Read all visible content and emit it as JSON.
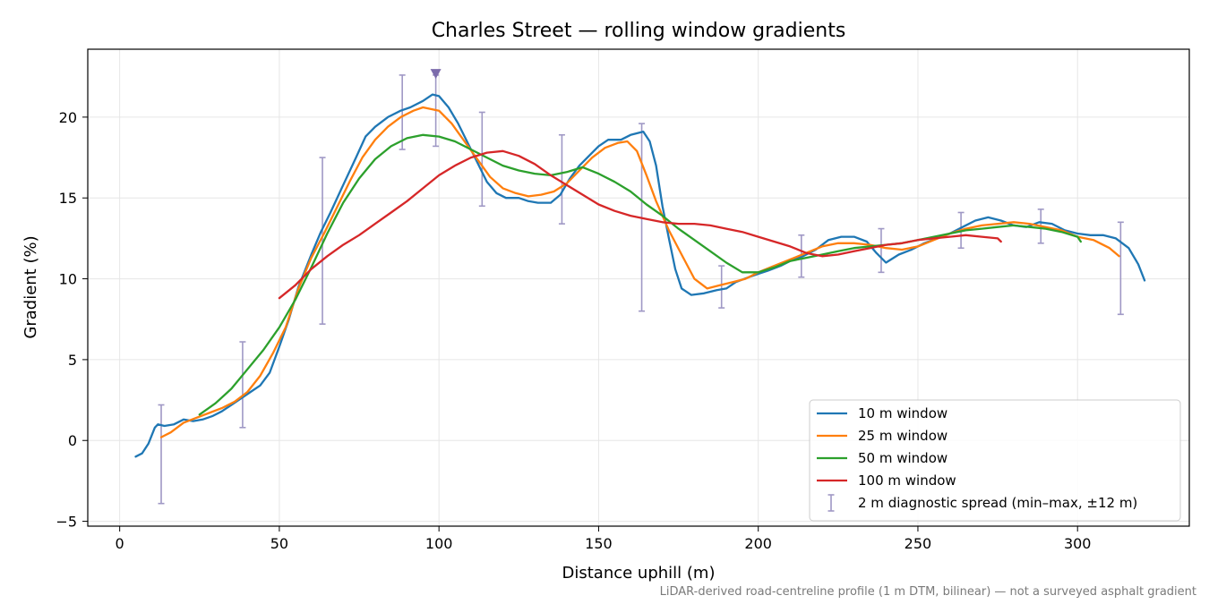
{
  "chart_data": {
    "type": "line",
    "title": "Charles Street — rolling window gradients",
    "xlabel": "Distance uphill (m)",
    "ylabel": "Gradient (%)",
    "xlim": [
      -10,
      335
    ],
    "ylim": [
      -5.3,
      24.2
    ],
    "xticks": [
      0,
      50,
      100,
      150,
      200,
      250,
      300
    ],
    "yticks": [
      -5,
      0,
      5,
      10,
      15,
      20
    ],
    "xtick_labels": [
      "0",
      "50",
      "100",
      "150",
      "200",
      "250",
      "300"
    ],
    "ytick_labels": [
      "−5",
      "0",
      "5",
      "10",
      "15",
      "20"
    ],
    "grid": true,
    "legend_position": "lower-right",
    "footnote": "LiDAR-derived road-centreline profile (1 m DTM, bilinear) — not a surveyed asphalt gradient",
    "series": [
      {
        "name": "10 m window",
        "color": "#1f77b4",
        "points": [
          [
            5,
            -1.0
          ],
          [
            7,
            -0.8
          ],
          [
            9,
            -0.2
          ],
          [
            11,
            0.8
          ],
          [
            12,
            1.0
          ],
          [
            14,
            0.9
          ],
          [
            17,
            1.0
          ],
          [
            20,
            1.3
          ],
          [
            23,
            1.2
          ],
          [
            26,
            1.3
          ],
          [
            29,
            1.5
          ],
          [
            32,
            1.8
          ],
          [
            35,
            2.2
          ],
          [
            38,
            2.6
          ],
          [
            41,
            3.0
          ],
          [
            44,
            3.4
          ],
          [
            47,
            4.2
          ],
          [
            50,
            5.8
          ],
          [
            53,
            7.5
          ],
          [
            56,
            9.5
          ],
          [
            60,
            11.5
          ],
          [
            63,
            12.9
          ],
          [
            66,
            14.1
          ],
          [
            70,
            15.8
          ],
          [
            74,
            17.5
          ],
          [
            77,
            18.8
          ],
          [
            80,
            19.4
          ],
          [
            84,
            20.0
          ],
          [
            88,
            20.4
          ],
          [
            91,
            20.6
          ],
          [
            95,
            21.0
          ],
          [
            98,
            21.4
          ],
          [
            100,
            21.3
          ],
          [
            103,
            20.6
          ],
          [
            106,
            19.6
          ],
          [
            109,
            18.4
          ],
          [
            112,
            17.2
          ],
          [
            115,
            16.0
          ],
          [
            118,
            15.3
          ],
          [
            121,
            15.0
          ],
          [
            125,
            15.0
          ],
          [
            128,
            14.8
          ],
          [
            131,
            14.7
          ],
          [
            135,
            14.7
          ],
          [
            138,
            15.2
          ],
          [
            141,
            16.2
          ],
          [
            144,
            17.0
          ],
          [
            147,
            17.6
          ],
          [
            150,
            18.2
          ],
          [
            153,
            18.6
          ],
          [
            157,
            18.6
          ],
          [
            160,
            18.9
          ],
          [
            164,
            19.1
          ],
          [
            166,
            18.5
          ],
          [
            168,
            17.0
          ],
          [
            170,
            14.5
          ],
          [
            172,
            12.5
          ],
          [
            174,
            10.6
          ],
          [
            176,
            9.4
          ],
          [
            179,
            9.0
          ],
          [
            183,
            9.1
          ],
          [
            187,
            9.3
          ],
          [
            190,
            9.4
          ],
          [
            193,
            9.8
          ],
          [
            197,
            10.1
          ],
          [
            200,
            10.3
          ],
          [
            203,
            10.5
          ],
          [
            207,
            10.8
          ],
          [
            210,
            11.1
          ],
          [
            214,
            11.4
          ],
          [
            218,
            11.8
          ],
          [
            222,
            12.4
          ],
          [
            226,
            12.6
          ],
          [
            230,
            12.6
          ],
          [
            234,
            12.3
          ],
          [
            237,
            11.6
          ],
          [
            240,
            11.0
          ],
          [
            244,
            11.5
          ],
          [
            248,
            11.8
          ],
          [
            252,
            12.2
          ],
          [
            256,
            12.5
          ],
          [
            260,
            12.8
          ],
          [
            264,
            13.2
          ],
          [
            268,
            13.6
          ],
          [
            272,
            13.8
          ],
          [
            276,
            13.6
          ],
          [
            280,
            13.3
          ],
          [
            284,
            13.2
          ],
          [
            288,
            13.5
          ],
          [
            292,
            13.4
          ],
          [
            296,
            13.0
          ],
          [
            300,
            12.8
          ],
          [
            304,
            12.7
          ],
          [
            308,
            12.7
          ],
          [
            312,
            12.5
          ],
          [
            316,
            11.9
          ],
          [
            319,
            10.9
          ],
          [
            321,
            9.9
          ]
        ]
      },
      {
        "name": "25 m window",
        "color": "#ff7f0e",
        "points": [
          [
            13,
            0.2
          ],
          [
            16,
            0.5
          ],
          [
            20,
            1.1
          ],
          [
            24,
            1.4
          ],
          [
            28,
            1.7
          ],
          [
            32,
            2.0
          ],
          [
            36,
            2.4
          ],
          [
            40,
            3.0
          ],
          [
            44,
            4.0
          ],
          [
            48,
            5.4
          ],
          [
            52,
            7.0
          ],
          [
            56,
            9.4
          ],
          [
            60,
            11.3
          ],
          [
            64,
            12.8
          ],
          [
            68,
            14.4
          ],
          [
            72,
            16.0
          ],
          [
            76,
            17.5
          ],
          [
            80,
            18.6
          ],
          [
            84,
            19.4
          ],
          [
            88,
            20.0
          ],
          [
            92,
            20.4
          ],
          [
            95,
            20.6
          ],
          [
            100,
            20.4
          ],
          [
            104,
            19.6
          ],
          [
            108,
            18.5
          ],
          [
            112,
            17.4
          ],
          [
            116,
            16.3
          ],
          [
            120,
            15.6
          ],
          [
            124,
            15.3
          ],
          [
            128,
            15.1
          ],
          [
            132,
            15.2
          ],
          [
            136,
            15.4
          ],
          [
            140,
            15.9
          ],
          [
            144,
            16.7
          ],
          [
            148,
            17.5
          ],
          [
            152,
            18.1
          ],
          [
            156,
            18.4
          ],
          [
            159,
            18.5
          ],
          [
            162,
            17.9
          ],
          [
            165,
            16.4
          ],
          [
            168,
            14.8
          ],
          [
            172,
            13.0
          ],
          [
            176,
            11.5
          ],
          [
            180,
            10.0
          ],
          [
            184,
            9.4
          ],
          [
            188,
            9.6
          ],
          [
            192,
            9.8
          ],
          [
            196,
            10.0
          ],
          [
            200,
            10.4
          ],
          [
            205,
            10.8
          ],
          [
            210,
            11.2
          ],
          [
            215,
            11.6
          ],
          [
            220,
            12.0
          ],
          [
            225,
            12.2
          ],
          [
            230,
            12.2
          ],
          [
            235,
            12.1
          ],
          [
            240,
            11.9
          ],
          [
            245,
            11.8
          ],
          [
            250,
            12.0
          ],
          [
            255,
            12.4
          ],
          [
            260,
            12.8
          ],
          [
            265,
            13.1
          ],
          [
            270,
            13.3
          ],
          [
            275,
            13.4
          ],
          [
            280,
            13.5
          ],
          [
            285,
            13.4
          ],
          [
            290,
            13.2
          ],
          [
            295,
            13.0
          ],
          [
            300,
            12.6
          ],
          [
            305,
            12.4
          ],
          [
            310,
            11.9
          ],
          [
            313,
            11.4
          ]
        ]
      },
      {
        "name": "50 m window",
        "color": "#2ca02c",
        "points": [
          [
            25,
            1.6
          ],
          [
            30,
            2.3
          ],
          [
            35,
            3.2
          ],
          [
            40,
            4.4
          ],
          [
            45,
            5.6
          ],
          [
            50,
            7.0
          ],
          [
            55,
            8.7
          ],
          [
            60,
            10.7
          ],
          [
            65,
            12.8
          ],
          [
            70,
            14.7
          ],
          [
            75,
            16.2
          ],
          [
            80,
            17.4
          ],
          [
            85,
            18.2
          ],
          [
            90,
            18.7
          ],
          [
            95,
            18.9
          ],
          [
            100,
            18.8
          ],
          [
            105,
            18.5
          ],
          [
            110,
            18.0
          ],
          [
            115,
            17.5
          ],
          [
            120,
            17.0
          ],
          [
            125,
            16.7
          ],
          [
            130,
            16.5
          ],
          [
            135,
            16.4
          ],
          [
            140,
            16.6
          ],
          [
            145,
            16.9
          ],
          [
            150,
            16.5
          ],
          [
            155,
            16.0
          ],
          [
            160,
            15.4
          ],
          [
            165,
            14.6
          ],
          [
            170,
            13.9
          ],
          [
            175,
            13.1
          ],
          [
            180,
            12.4
          ],
          [
            185,
            11.7
          ],
          [
            190,
            11.0
          ],
          [
            195,
            10.4
          ],
          [
            200,
            10.4
          ],
          [
            205,
            10.7
          ],
          [
            210,
            11.1
          ],
          [
            215,
            11.3
          ],
          [
            220,
            11.5
          ],
          [
            225,
            11.7
          ],
          [
            230,
            11.9
          ],
          [
            235,
            12.0
          ],
          [
            240,
            12.1
          ],
          [
            245,
            12.2
          ],
          [
            250,
            12.4
          ],
          [
            255,
            12.6
          ],
          [
            260,
            12.8
          ],
          [
            265,
            13.0
          ],
          [
            270,
            13.1
          ],
          [
            275,
            13.2
          ],
          [
            280,
            13.3
          ],
          [
            285,
            13.2
          ],
          [
            290,
            13.1
          ],
          [
            295,
            12.9
          ],
          [
            300,
            12.6
          ],
          [
            301,
            12.3
          ]
        ]
      },
      {
        "name": "100 m window",
        "color": "#d62728",
        "points": [
          [
            50,
            8.8
          ],
          [
            55,
            9.6
          ],
          [
            60,
            10.6
          ],
          [
            65,
            11.4
          ],
          [
            70,
            12.1
          ],
          [
            75,
            12.7
          ],
          [
            80,
            13.4
          ],
          [
            85,
            14.1
          ],
          [
            90,
            14.8
          ],
          [
            95,
            15.6
          ],
          [
            100,
            16.4
          ],
          [
            105,
            17.0
          ],
          [
            110,
            17.5
          ],
          [
            115,
            17.8
          ],
          [
            120,
            17.9
          ],
          [
            125,
            17.6
          ],
          [
            130,
            17.1
          ],
          [
            135,
            16.4
          ],
          [
            140,
            15.8
          ],
          [
            145,
            15.2
          ],
          [
            150,
            14.6
          ],
          [
            155,
            14.2
          ],
          [
            160,
            13.9
          ],
          [
            165,
            13.7
          ],
          [
            170,
            13.5
          ],
          [
            175,
            13.4
          ],
          [
            180,
            13.4
          ],
          [
            185,
            13.3
          ],
          [
            190,
            13.1
          ],
          [
            195,
            12.9
          ],
          [
            200,
            12.6
          ],
          [
            205,
            12.3
          ],
          [
            210,
            12.0
          ],
          [
            215,
            11.6
          ],
          [
            220,
            11.4
          ],
          [
            225,
            11.5
          ],
          [
            230,
            11.7
          ],
          [
            235,
            11.9
          ],
          [
            240,
            12.1
          ],
          [
            245,
            12.2
          ],
          [
            250,
            12.4
          ],
          [
            255,
            12.5
          ],
          [
            260,
            12.6
          ],
          [
            265,
            12.7
          ],
          [
            270,
            12.6
          ],
          [
            275,
            12.5
          ],
          [
            276,
            12.3
          ]
        ]
      }
    ],
    "error_bars": {
      "name": "2 m diagnostic spread (min–max, ±12 m)",
      "color": "#9f98c5",
      "bars": [
        [
          13,
          -3.9,
          2.2
        ],
        [
          38.5,
          0.8,
          6.1
        ],
        [
          63.5,
          7.2,
          17.5
        ],
        [
          88.5,
          18.0,
          22.6
        ],
        [
          99,
          18.2,
          22.6
        ],
        [
          113.5,
          14.5,
          20.3
        ],
        [
          138.5,
          13.4,
          18.9
        ],
        [
          163.5,
          8.0,
          19.6
        ],
        [
          188.5,
          8.2,
          10.8
        ],
        [
          213.5,
          10.1,
          12.7
        ],
        [
          238.5,
          10.4,
          13.1
        ],
        [
          263.5,
          11.9,
          14.1
        ],
        [
          288.5,
          12.2,
          14.3
        ],
        [
          313.5,
          7.8,
          13.5
        ]
      ]
    },
    "peak_marker": {
      "x": 99,
      "y": 22.7,
      "color": "#7b6bab"
    }
  }
}
